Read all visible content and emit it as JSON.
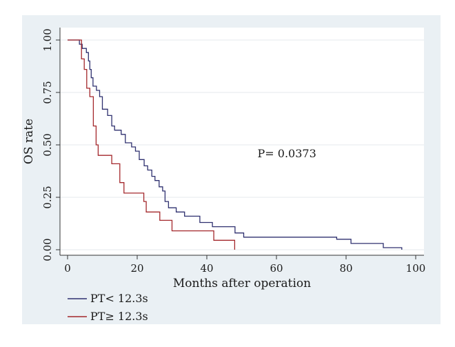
{
  "chart_data": {
    "type": "line",
    "subtype": "kaplan-meier-step",
    "xlabel": "Months after operation",
    "ylabel": "OS rate",
    "xlim": [
      0,
      100
    ],
    "ylim": [
      0,
      1
    ],
    "x_ticks": [
      0,
      20,
      40,
      60,
      80,
      100
    ],
    "x_tick_labels": [
      "0",
      "20",
      "40",
      "60",
      "80",
      "100"
    ],
    "y_ticks": [
      0,
      0.25,
      0.5,
      0.75,
      1
    ],
    "y_tick_labels": [
      "0.00",
      "0.25",
      "0.50",
      "0.75",
      "1.00"
    ],
    "grid": "horizontal",
    "legend_position": "bottom-left",
    "annotations": [
      {
        "text": "P= 0.0373",
        "x": 63,
        "y": 0.44
      }
    ],
    "series": [
      {
        "name": "PT< 12.3s",
        "color": "#2d2f6e",
        "points": [
          [
            0,
            1.0
          ],
          [
            3.0,
            1.0
          ],
          [
            3.4,
            0.98
          ],
          [
            4.2,
            0.96
          ],
          [
            5.4,
            0.94
          ],
          [
            6.0,
            0.9
          ],
          [
            6.4,
            0.86
          ],
          [
            6.8,
            0.82
          ],
          [
            7.3,
            0.78
          ],
          [
            8.3,
            0.76
          ],
          [
            9.2,
            0.73
          ],
          [
            10.0,
            0.67
          ],
          [
            11.5,
            0.64
          ],
          [
            12.7,
            0.59
          ],
          [
            13.5,
            0.57
          ],
          [
            15.4,
            0.55
          ],
          [
            16.6,
            0.51
          ],
          [
            18.4,
            0.49
          ],
          [
            19.5,
            0.47
          ],
          [
            20.6,
            0.43
          ],
          [
            22.0,
            0.4
          ],
          [
            23.0,
            0.38
          ],
          [
            24.2,
            0.35
          ],
          [
            25.1,
            0.33
          ],
          [
            26.3,
            0.3
          ],
          [
            27.3,
            0.28
          ],
          [
            28.0,
            0.23
          ],
          [
            29.0,
            0.2
          ],
          [
            31.2,
            0.18
          ],
          [
            33.6,
            0.16
          ],
          [
            38.0,
            0.13
          ],
          [
            41.6,
            0.11
          ],
          [
            48.1,
            0.08
          ],
          [
            50.6,
            0.06
          ],
          [
            77.3,
            0.05
          ],
          [
            81.4,
            0.03
          ],
          [
            90.7,
            0.01
          ],
          [
            96.0,
            0.01
          ],
          [
            96.0,
            0.0
          ]
        ]
      },
      {
        "name": "PT≥ 12.3s",
        "color": "#a3262a",
        "points": [
          [
            0,
            1.0
          ],
          [
            3.4,
            1.0
          ],
          [
            4.0,
            0.91
          ],
          [
            4.8,
            0.86
          ],
          [
            5.5,
            0.77
          ],
          [
            6.4,
            0.73
          ],
          [
            7.4,
            0.59
          ],
          [
            8.2,
            0.5
          ],
          [
            8.8,
            0.45
          ],
          [
            12.7,
            0.41
          ],
          [
            15.0,
            0.32
          ],
          [
            16.2,
            0.27
          ],
          [
            21.9,
            0.23
          ],
          [
            22.6,
            0.18
          ],
          [
            26.5,
            0.14
          ],
          [
            30.0,
            0.09
          ],
          [
            42.0,
            0.045
          ],
          [
            48.0,
            0.045
          ],
          [
            48.0,
            0.0
          ]
        ]
      }
    ]
  }
}
